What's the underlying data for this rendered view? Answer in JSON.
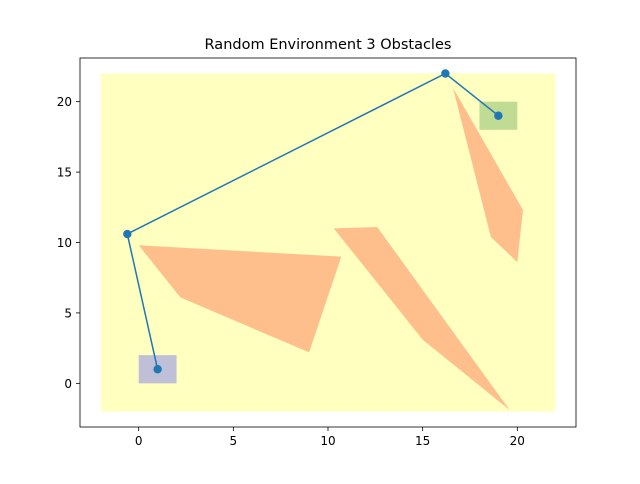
{
  "chart_data": {
    "type": "scatter",
    "title": "Random Environment 3 Obstacles",
    "xlabel": "",
    "ylabel": "",
    "xlim": [
      -3.1,
      23.1
    ],
    "ylim": [
      -3.1,
      23.1
    ],
    "x_ticks": [
      0,
      5,
      10,
      15,
      20
    ],
    "y_ticks": [
      0,
      5,
      10,
      15,
      20
    ],
    "grid": false,
    "colors": {
      "environment": "#ffffc0",
      "start_region": "#bfbfd8",
      "goal_region": "#c0dc94",
      "obstacle": "#ffbf8c",
      "path": "#1f77b4"
    },
    "environment": {
      "x": [
        -2,
        22
      ],
      "y": [
        -2,
        22
      ]
    },
    "start_region": {
      "x": [
        0,
        2
      ],
      "y": [
        0,
        2
      ]
    },
    "goal_region": {
      "x": [
        18,
        20
      ],
      "y": [
        18,
        20
      ]
    },
    "obstacles": [
      [
        [
          0,
          9.8
        ],
        [
          10.7,
          9.0
        ],
        [
          9.0,
          2.2
        ],
        [
          2.2,
          6.1
        ]
      ],
      [
        [
          10.3,
          11.0
        ],
        [
          12.6,
          11.1
        ],
        [
          19.6,
          -1.9
        ],
        [
          15.0,
          3.1
        ]
      ],
      [
        [
          16.6,
          21.0
        ],
        [
          20.3,
          12.3
        ],
        [
          20.0,
          8.6
        ],
        [
          18.6,
          10.4
        ]
      ]
    ],
    "path": {
      "x": [
        1.0,
        -0.6,
        16.2,
        19.0
      ],
      "y": [
        1.0,
        10.6,
        22.0,
        19.0
      ]
    }
  }
}
